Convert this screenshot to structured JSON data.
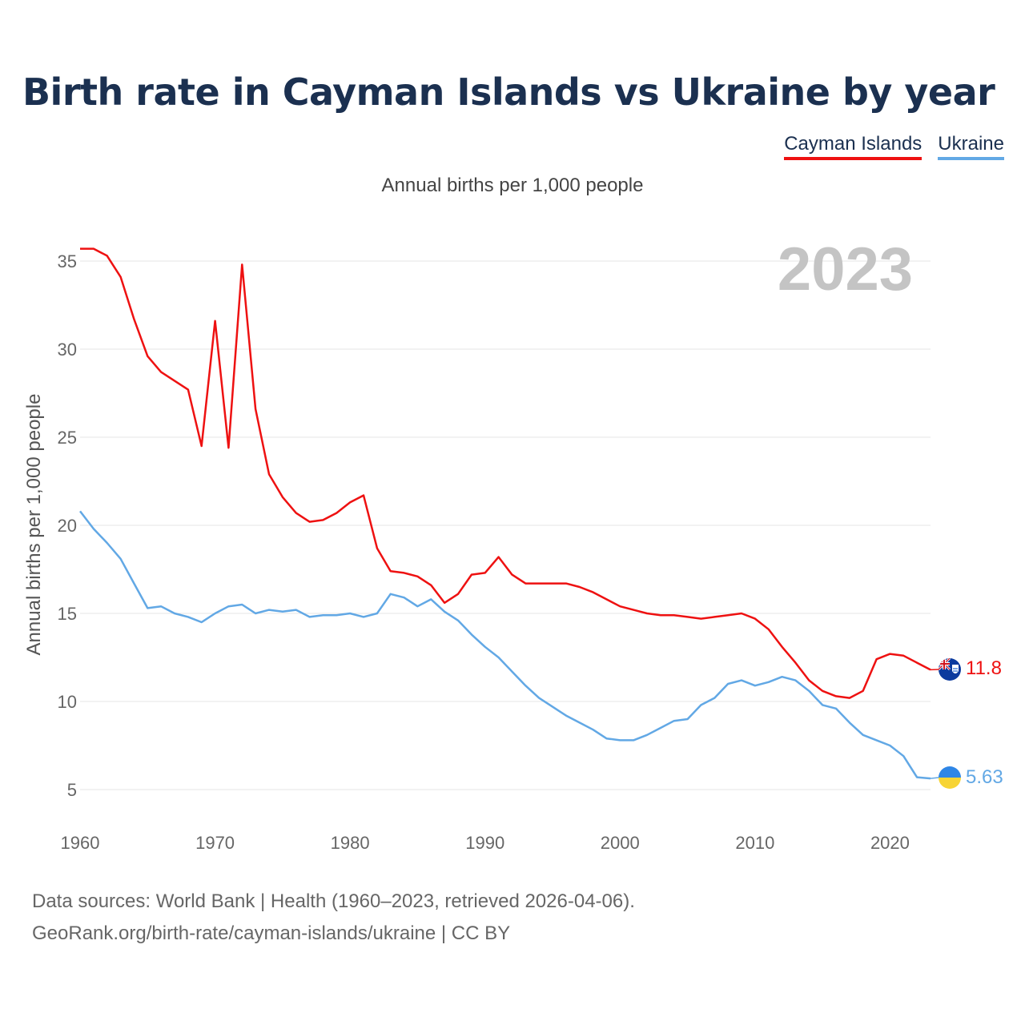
{
  "title": "Birth rate in Cayman Islands vs Ukraine by year",
  "legend": [
    {
      "label": "Cayman Islands",
      "color": "#ee1111"
    },
    {
      "label": "Ukraine",
      "color": "#62a8e5"
    }
  ],
  "subtitle": "Annual births per 1,000 people",
  "current_year": "2023",
  "footer": {
    "line1": "Data sources: World Bank | Health (1960–2023, retrieved 2026-04-06).",
    "line2": "GeoRank.org/birth-rate/cayman-islands/ukraine | CC BY"
  },
  "chart_data": {
    "type": "line",
    "title": "Birth rate in Cayman Islands vs Ukraine by year",
    "xlabel": "",
    "ylabel": "Annual births per 1,000 people",
    "xlim": [
      1960,
      2023
    ],
    "ylim": [
      5,
      36
    ],
    "xticks": [
      1960,
      1970,
      1980,
      1990,
      2000,
      2010,
      2020
    ],
    "yticks": [
      5,
      10,
      15,
      20,
      25,
      30,
      35
    ],
    "grid": true,
    "x": [
      1960,
      1961,
      1962,
      1963,
      1964,
      1965,
      1966,
      1967,
      1968,
      1969,
      1970,
      1971,
      1972,
      1973,
      1974,
      1975,
      1976,
      1977,
      1978,
      1979,
      1980,
      1981,
      1982,
      1983,
      1984,
      1985,
      1986,
      1987,
      1988,
      1989,
      1990,
      1991,
      1992,
      1993,
      1994,
      1995,
      1996,
      1997,
      1998,
      1999,
      2000,
      2001,
      2002,
      2003,
      2004,
      2005,
      2006,
      2007,
      2008,
      2009,
      2010,
      2011,
      2012,
      2013,
      2014,
      2015,
      2016,
      2017,
      2018,
      2019,
      2020,
      2021,
      2022,
      2023
    ],
    "series": [
      {
        "name": "Cayman Islands",
        "color": "#ee1111",
        "end_label": "11.8",
        "values": [
          35.7,
          35.7,
          35.3,
          34.1,
          31.7,
          29.6,
          28.7,
          28.2,
          27.7,
          24.5,
          31.6,
          24.4,
          34.8,
          26.6,
          22.9,
          21.6,
          20.7,
          20.2,
          20.3,
          20.7,
          21.3,
          21.7,
          18.7,
          17.4,
          17.3,
          17.1,
          16.6,
          15.6,
          16.1,
          17.2,
          17.3,
          18.2,
          17.2,
          16.7,
          16.7,
          16.7,
          16.7,
          16.5,
          16.2,
          15.8,
          15.4,
          15.2,
          15.0,
          14.9,
          14.9,
          14.8,
          14.7,
          14.8,
          14.9,
          15.0,
          14.7,
          14.1,
          13.1,
          12.2,
          11.2,
          10.6,
          10.3,
          10.2,
          10.6,
          12.4,
          12.7,
          12.6,
          12.2,
          11.8
        ]
      },
      {
        "name": "Ukraine",
        "color": "#62a8e5",
        "end_label": "5.63",
        "values": [
          20.8,
          19.8,
          19.0,
          18.1,
          16.7,
          15.3,
          15.4,
          15.0,
          14.8,
          14.5,
          15.0,
          15.4,
          15.5,
          15.0,
          15.2,
          15.1,
          15.2,
          14.8,
          14.9,
          14.9,
          15.0,
          14.8,
          15.0,
          16.1,
          15.9,
          15.4,
          15.8,
          15.1,
          14.6,
          13.8,
          13.1,
          12.5,
          11.7,
          10.9,
          10.2,
          9.7,
          9.2,
          8.8,
          8.4,
          7.9,
          7.8,
          7.8,
          8.1,
          8.5,
          8.9,
          9.0,
          9.8,
          10.2,
          11.0,
          11.2,
          10.9,
          11.1,
          11.4,
          11.2,
          10.6,
          9.8,
          9.6,
          8.8,
          8.1,
          7.8,
          7.5,
          6.9,
          5.7,
          5.63
        ]
      }
    ]
  }
}
